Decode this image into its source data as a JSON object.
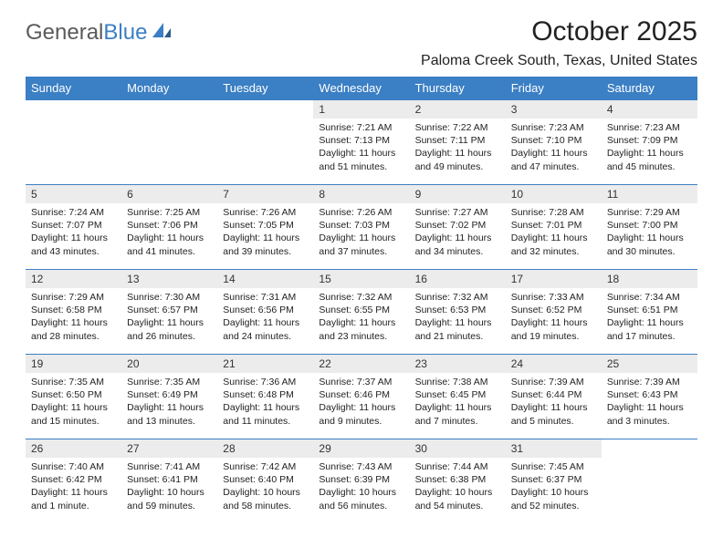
{
  "logo": {
    "word1": "General",
    "word2": "Blue"
  },
  "title": "October 2025",
  "location": "Paloma Creek South, Texas, United States",
  "colors": {
    "header_bg": "#3b7fc4",
    "header_fg": "#ffffff",
    "daynum_bg": "#ececec",
    "rule": "#3b7fc4",
    "text": "#222222"
  },
  "day_headers": [
    "Sunday",
    "Monday",
    "Tuesday",
    "Wednesday",
    "Thursday",
    "Friday",
    "Saturday"
  ],
  "weeks": [
    [
      {
        "num": "",
        "lines": []
      },
      {
        "num": "",
        "lines": []
      },
      {
        "num": "",
        "lines": []
      },
      {
        "num": "1",
        "lines": [
          "Sunrise: 7:21 AM",
          "Sunset: 7:13 PM",
          "Daylight: 11 hours and 51 minutes."
        ]
      },
      {
        "num": "2",
        "lines": [
          "Sunrise: 7:22 AM",
          "Sunset: 7:11 PM",
          "Daylight: 11 hours and 49 minutes."
        ]
      },
      {
        "num": "3",
        "lines": [
          "Sunrise: 7:23 AM",
          "Sunset: 7:10 PM",
          "Daylight: 11 hours and 47 minutes."
        ]
      },
      {
        "num": "4",
        "lines": [
          "Sunrise: 7:23 AM",
          "Sunset: 7:09 PM",
          "Daylight: 11 hours and 45 minutes."
        ]
      }
    ],
    [
      {
        "num": "5",
        "lines": [
          "Sunrise: 7:24 AM",
          "Sunset: 7:07 PM",
          "Daylight: 11 hours and 43 minutes."
        ]
      },
      {
        "num": "6",
        "lines": [
          "Sunrise: 7:25 AM",
          "Sunset: 7:06 PM",
          "Daylight: 11 hours and 41 minutes."
        ]
      },
      {
        "num": "7",
        "lines": [
          "Sunrise: 7:26 AM",
          "Sunset: 7:05 PM",
          "Daylight: 11 hours and 39 minutes."
        ]
      },
      {
        "num": "8",
        "lines": [
          "Sunrise: 7:26 AM",
          "Sunset: 7:03 PM",
          "Daylight: 11 hours and 37 minutes."
        ]
      },
      {
        "num": "9",
        "lines": [
          "Sunrise: 7:27 AM",
          "Sunset: 7:02 PM",
          "Daylight: 11 hours and 34 minutes."
        ]
      },
      {
        "num": "10",
        "lines": [
          "Sunrise: 7:28 AM",
          "Sunset: 7:01 PM",
          "Daylight: 11 hours and 32 minutes."
        ]
      },
      {
        "num": "11",
        "lines": [
          "Sunrise: 7:29 AM",
          "Sunset: 7:00 PM",
          "Daylight: 11 hours and 30 minutes."
        ]
      }
    ],
    [
      {
        "num": "12",
        "lines": [
          "Sunrise: 7:29 AM",
          "Sunset: 6:58 PM",
          "Daylight: 11 hours and 28 minutes."
        ]
      },
      {
        "num": "13",
        "lines": [
          "Sunrise: 7:30 AM",
          "Sunset: 6:57 PM",
          "Daylight: 11 hours and 26 minutes."
        ]
      },
      {
        "num": "14",
        "lines": [
          "Sunrise: 7:31 AM",
          "Sunset: 6:56 PM",
          "Daylight: 11 hours and 24 minutes."
        ]
      },
      {
        "num": "15",
        "lines": [
          "Sunrise: 7:32 AM",
          "Sunset: 6:55 PM",
          "Daylight: 11 hours and 23 minutes."
        ]
      },
      {
        "num": "16",
        "lines": [
          "Sunrise: 7:32 AM",
          "Sunset: 6:53 PM",
          "Daylight: 11 hours and 21 minutes."
        ]
      },
      {
        "num": "17",
        "lines": [
          "Sunrise: 7:33 AM",
          "Sunset: 6:52 PM",
          "Daylight: 11 hours and 19 minutes."
        ]
      },
      {
        "num": "18",
        "lines": [
          "Sunrise: 7:34 AM",
          "Sunset: 6:51 PM",
          "Daylight: 11 hours and 17 minutes."
        ]
      }
    ],
    [
      {
        "num": "19",
        "lines": [
          "Sunrise: 7:35 AM",
          "Sunset: 6:50 PM",
          "Daylight: 11 hours and 15 minutes."
        ]
      },
      {
        "num": "20",
        "lines": [
          "Sunrise: 7:35 AM",
          "Sunset: 6:49 PM",
          "Daylight: 11 hours and 13 minutes."
        ]
      },
      {
        "num": "21",
        "lines": [
          "Sunrise: 7:36 AM",
          "Sunset: 6:48 PM",
          "Daylight: 11 hours and 11 minutes."
        ]
      },
      {
        "num": "22",
        "lines": [
          "Sunrise: 7:37 AM",
          "Sunset: 6:46 PM",
          "Daylight: 11 hours and 9 minutes."
        ]
      },
      {
        "num": "23",
        "lines": [
          "Sunrise: 7:38 AM",
          "Sunset: 6:45 PM",
          "Daylight: 11 hours and 7 minutes."
        ]
      },
      {
        "num": "24",
        "lines": [
          "Sunrise: 7:39 AM",
          "Sunset: 6:44 PM",
          "Daylight: 11 hours and 5 minutes."
        ]
      },
      {
        "num": "25",
        "lines": [
          "Sunrise: 7:39 AM",
          "Sunset: 6:43 PM",
          "Daylight: 11 hours and 3 minutes."
        ]
      }
    ],
    [
      {
        "num": "26",
        "lines": [
          "Sunrise: 7:40 AM",
          "Sunset: 6:42 PM",
          "Daylight: 11 hours and 1 minute."
        ]
      },
      {
        "num": "27",
        "lines": [
          "Sunrise: 7:41 AM",
          "Sunset: 6:41 PM",
          "Daylight: 10 hours and 59 minutes."
        ]
      },
      {
        "num": "28",
        "lines": [
          "Sunrise: 7:42 AM",
          "Sunset: 6:40 PM",
          "Daylight: 10 hours and 58 minutes."
        ]
      },
      {
        "num": "29",
        "lines": [
          "Sunrise: 7:43 AM",
          "Sunset: 6:39 PM",
          "Daylight: 10 hours and 56 minutes."
        ]
      },
      {
        "num": "30",
        "lines": [
          "Sunrise: 7:44 AM",
          "Sunset: 6:38 PM",
          "Daylight: 10 hours and 54 minutes."
        ]
      },
      {
        "num": "31",
        "lines": [
          "Sunrise: 7:45 AM",
          "Sunset: 6:37 PM",
          "Daylight: 10 hours and 52 minutes."
        ]
      },
      {
        "num": "",
        "lines": []
      }
    ]
  ]
}
